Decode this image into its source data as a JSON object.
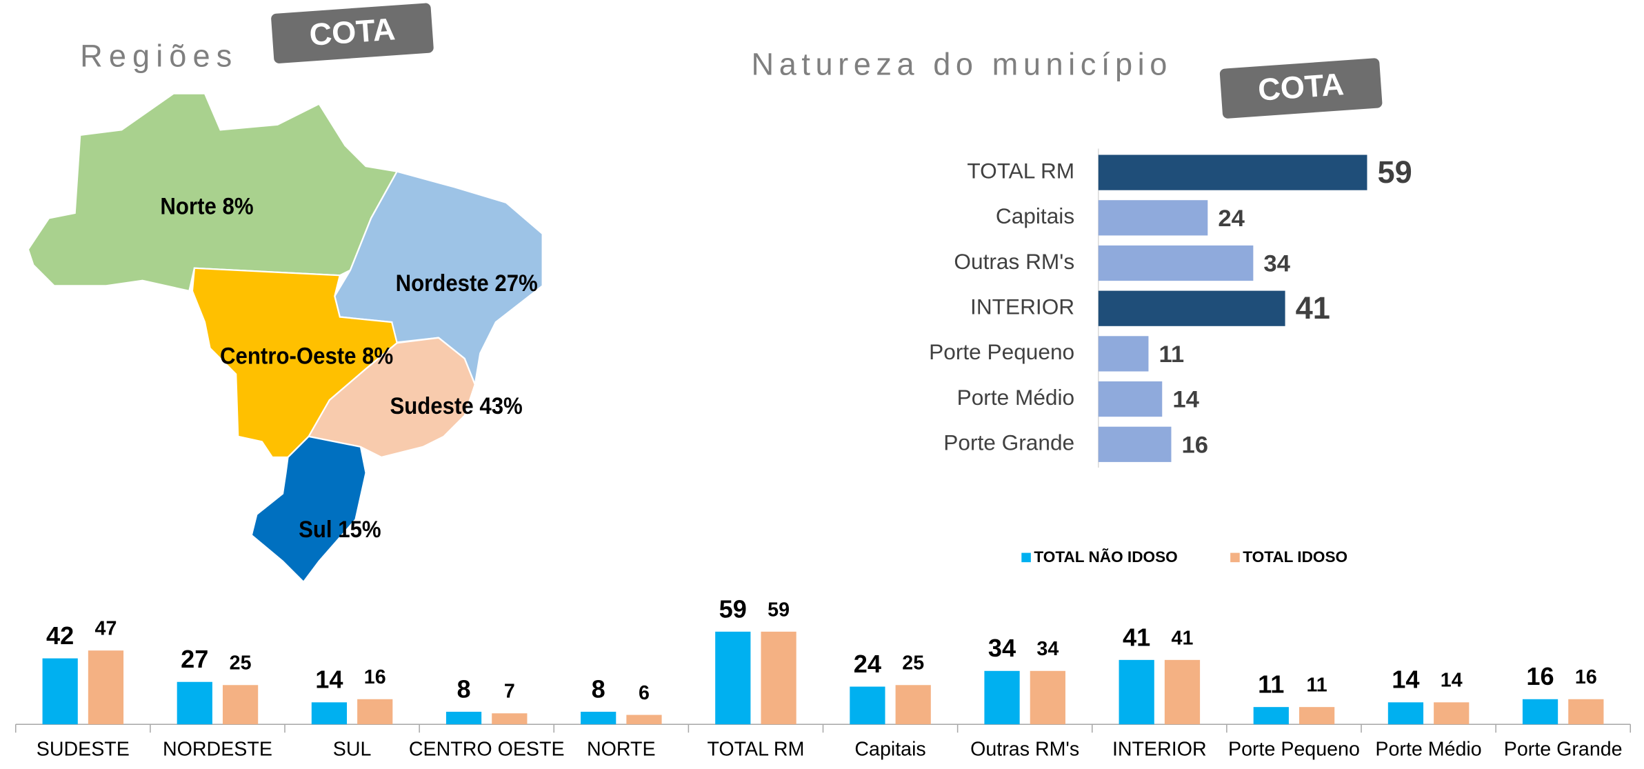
{
  "map": {
    "title": "Regiões",
    "badge": "COTA",
    "regions": [
      {
        "name": "Norte",
        "label": "Norte 8%",
        "color": "#a9d18e"
      },
      {
        "name": "Nordeste",
        "label": "Nordeste 27%",
        "color": "#9dc3e6"
      },
      {
        "name": "Centro-Oeste",
        "label": "Centro-Oeste 8%",
        "color": "#ffc000"
      },
      {
        "name": "Sudeste",
        "label": "Sudeste 43%",
        "color": "#f8cbad"
      },
      {
        "name": "Sul",
        "label": "Sul 15%",
        "color": "#0070c0"
      }
    ]
  },
  "chart_data": [
    {
      "type": "hbar",
      "title": "Natureza do município",
      "badge": "COTA",
      "categories": [
        "TOTAL RM",
        "Capitais",
        "Outras RM's",
        "INTERIOR",
        "Porte Pequeno",
        "Porte Médio",
        "Porte Grande"
      ],
      "values": [
        59,
        24,
        34,
        41,
        11,
        14,
        16
      ],
      "colors": [
        "#1f4e79",
        "#8faadc",
        "#8faadc",
        "#1f4e79",
        "#8faadc",
        "#8faadc",
        "#8faadc"
      ],
      "xlim": [
        0,
        60
      ]
    },
    {
      "type": "grouped_bar",
      "categories": [
        "SUDESTE",
        "NORDESTE",
        "SUL",
        "CENTRO OESTE",
        "NORTE",
        "TOTAL RM",
        "Capitais",
        "Outras RM's",
        "INTERIOR",
        "Porte Pequeno",
        "Porte Médio",
        "Porte Grande"
      ],
      "series": [
        {
          "name": "TOTAL NÃO IDOSO",
          "color": "#00b0f0",
          "values": [
            42,
            27,
            14,
            8,
            8,
            59,
            24,
            34,
            41,
            11,
            14,
            16
          ]
        },
        {
          "name": "TOTAL IDOSO",
          "color": "#f4b183",
          "values": [
            47,
            25,
            16,
            7,
            6,
            59,
            25,
            34,
            41,
            11,
            14,
            16
          ]
        }
      ],
      "ylim": [
        0,
        90
      ],
      "legend": "top-right"
    }
  ]
}
